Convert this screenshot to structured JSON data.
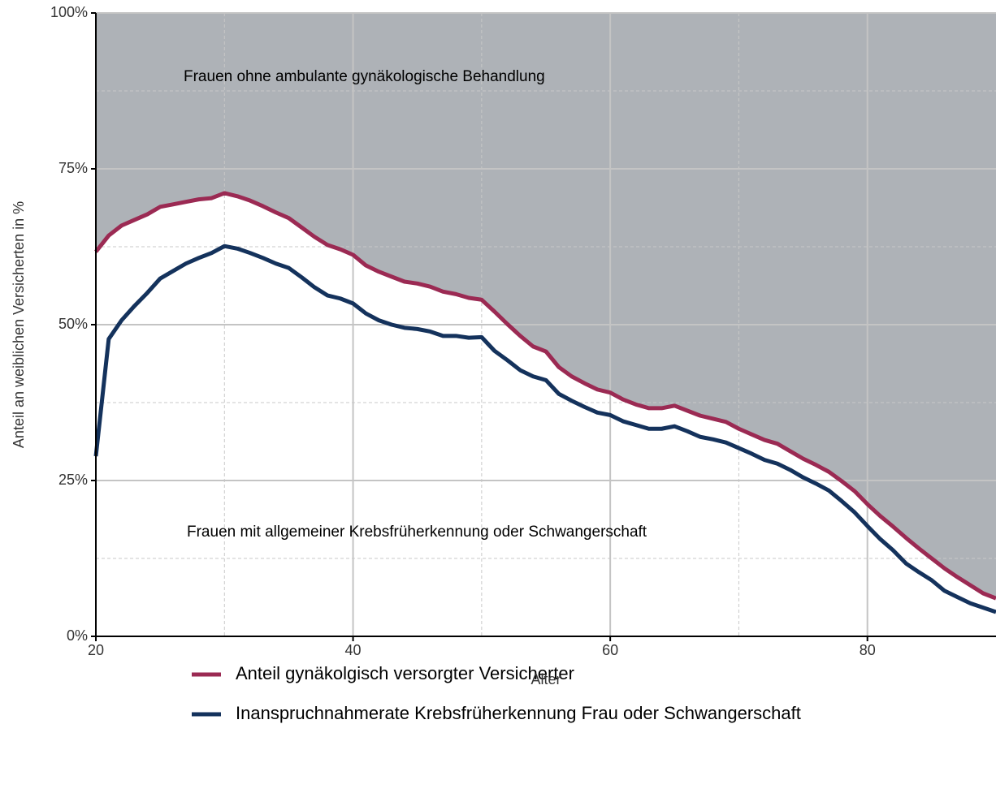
{
  "chart_data": {
    "type": "line",
    "xlabel": "Alter",
    "ylabel": "Anteil an weiblichen Versicherten in %",
    "annotations": [
      "Frauen ohne ambulante gynäkologische Behandlung",
      "Frauen mit allgemeiner Krebsfrüherkennung oder Schwangerschaft"
    ],
    "x": [
      20,
      21,
      22,
      23,
      24,
      25,
      26,
      27,
      28,
      29,
      30,
      31,
      32,
      33,
      34,
      35,
      36,
      37,
      38,
      39,
      40,
      41,
      42,
      43,
      44,
      45,
      46,
      47,
      48,
      49,
      50,
      51,
      52,
      53,
      54,
      55,
      56,
      57,
      58,
      59,
      60,
      61,
      62,
      63,
      64,
      65,
      66,
      67,
      68,
      69,
      70,
      71,
      72,
      73,
      74,
      75,
      76,
      77,
      78,
      79,
      80,
      81,
      82,
      83,
      84,
      85,
      86,
      87,
      88,
      89,
      90
    ],
    "series": [
      {
        "name": "Anteil gynäkolgisch versorgter Versicherter",
        "color": "#9b2a53",
        "fill_above": "#aeb2b7",
        "values": [
          61.7,
          64.3,
          65.9,
          66.8,
          67.7,
          68.9,
          69.3,
          69.7,
          70.1,
          70.3,
          71.1,
          70.6,
          69.9,
          69.0,
          68.0,
          67.1,
          65.6,
          64.1,
          62.8,
          62.1,
          61.2,
          59.5,
          58.5,
          57.7,
          56.9,
          56.6,
          56.1,
          55.3,
          54.9,
          54.3,
          54.0,
          52.1,
          50.1,
          48.2,
          46.5,
          45.7,
          43.2,
          41.7,
          40.6,
          39.6,
          39.1,
          38.0,
          37.2,
          36.6,
          36.6,
          37.0,
          36.2,
          35.4,
          34.9,
          34.4,
          33.3,
          32.4,
          31.5,
          30.9,
          29.7,
          28.5,
          27.5,
          26.4,
          24.9,
          23.3,
          21.2,
          19.3,
          17.6,
          15.8,
          14.1,
          12.5,
          10.9,
          9.5,
          8.2,
          6.9,
          6.1
        ]
      },
      {
        "name": "Inanspruchnahmerate Krebsfrüherkennung Frau oder Schwangerschaft",
        "color": "#14325c",
        "values": [
          28.9,
          47.7,
          50.7,
          53.0,
          55.1,
          57.4,
          58.6,
          59.8,
          60.7,
          61.5,
          62.6,
          62.2,
          61.5,
          60.7,
          59.8,
          59.1,
          57.6,
          56.0,
          54.7,
          54.2,
          53.4,
          51.8,
          50.7,
          50.0,
          49.5,
          49.3,
          48.9,
          48.2,
          48.2,
          47.9,
          48.0,
          45.8,
          44.3,
          42.7,
          41.7,
          41.1,
          38.9,
          37.8,
          36.8,
          35.9,
          35.5,
          34.5,
          33.9,
          33.3,
          33.3,
          33.7,
          32.9,
          32.0,
          31.6,
          31.1,
          30.2,
          29.3,
          28.3,
          27.7,
          26.7,
          25.5,
          24.5,
          23.4,
          21.7,
          19.9,
          17.7,
          15.6,
          13.8,
          11.7,
          10.3,
          9.0,
          7.3,
          6.3,
          5.3,
          4.6,
          3.9
        ]
      }
    ],
    "xlim": [
      20,
      90
    ],
    "xticks": [
      20,
      40,
      60,
      80
    ],
    "xminorticks": [
      30,
      50,
      70
    ],
    "ylim": [
      0,
      100
    ],
    "yticks": [
      {
        "value": 0,
        "label": "0%"
      },
      {
        "value": 25,
        "label": "25%"
      },
      {
        "value": 50,
        "label": "50%"
      },
      {
        "value": 75,
        "label": "75%"
      },
      {
        "value": 100,
        "label": "100%"
      }
    ],
    "yminorticks": [
      12.5,
      37.5,
      62.5,
      87.5
    ],
    "grid": true
  }
}
